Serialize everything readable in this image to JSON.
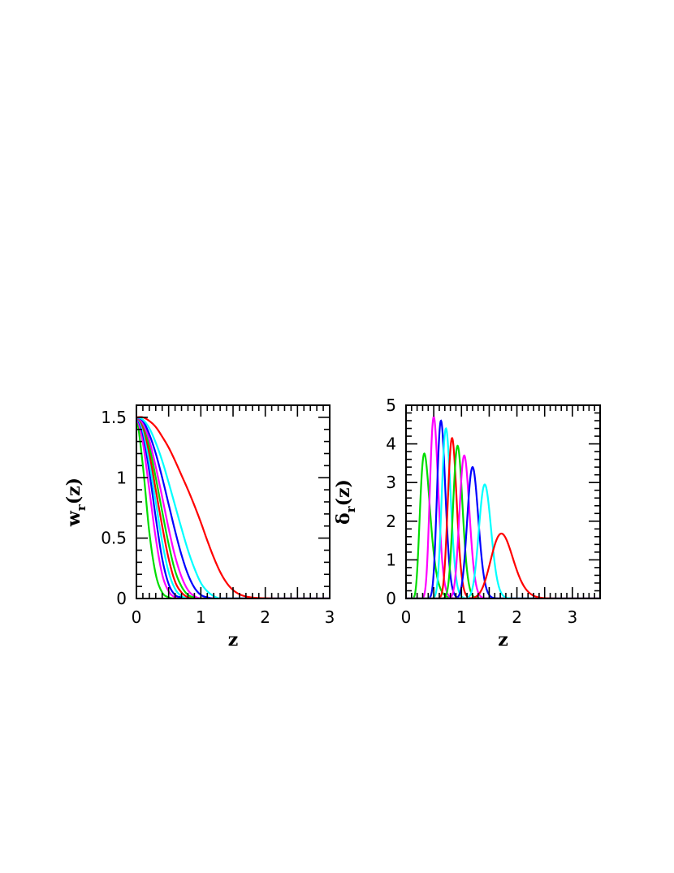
{
  "chart_data": [
    {
      "type": "line",
      "xlabel": "z",
      "ylabel": "w",
      "ylabel_sub": "r",
      "ylabel_suffix": "(z)",
      "xlim": [
        0,
        3
      ],
      "ylim": [
        0,
        1.6
      ],
      "xticks": [
        0,
        1,
        2,
        3
      ],
      "xtick_labels": [
        "0",
        "1",
        "2",
        "3"
      ],
      "yticks": [
        0,
        0.5,
        1,
        1.5
      ],
      "ytick_labels": [
        "0",
        "0.5",
        "1",
        "1.5"
      ],
      "grid": false,
      "legend": "none",
      "x": [
        0,
        0.1,
        0.2,
        0.3,
        0.4,
        0.5,
        0.6,
        0.7,
        0.8,
        0.9,
        1.0,
        1.1,
        1.2,
        1.3,
        1.4,
        1.5,
        1.6,
        1.7,
        1.8,
        1.9,
        2.0,
        2.2,
        2.4,
        2.6,
        2.8,
        3.0
      ],
      "series": [
        {
          "color": "#00dd00",
          "values": [
            1.5,
            1.1,
            0.55,
            0.2,
            0.05,
            0.01,
            0.0,
            0,
            0,
            0,
            0,
            0,
            0,
            0,
            0,
            0,
            0,
            0,
            0,
            0,
            0,
            0,
            0,
            0,
            0,
            0
          ]
        },
        {
          "color": "#ff00ff",
          "values": [
            1.5,
            1.29,
            0.9,
            0.5,
            0.2,
            0.06,
            0.01,
            0.0,
            0,
            0,
            0,
            0,
            0,
            0,
            0,
            0,
            0,
            0,
            0,
            0,
            0,
            0,
            0,
            0,
            0,
            0
          ]
        },
        {
          "color": "#0000ff",
          "values": [
            1.5,
            1.36,
            1.05,
            0.67,
            0.33,
            0.12,
            0.03,
            0.01,
            0.0,
            0,
            0,
            0,
            0,
            0,
            0,
            0,
            0,
            0,
            0,
            0,
            0,
            0,
            0,
            0,
            0,
            0
          ]
        },
        {
          "color": "#00ffff",
          "values": [
            1.5,
            1.39,
            1.13,
            0.8,
            0.47,
            0.22,
            0.08,
            0.02,
            0.0,
            0,
            0,
            0,
            0,
            0,
            0,
            0,
            0,
            0,
            0,
            0,
            0,
            0,
            0,
            0,
            0,
            0
          ]
        },
        {
          "color": "#ff0000",
          "values": [
            1.5,
            1.42,
            1.2,
            0.9,
            0.6,
            0.33,
            0.14,
            0.05,
            0.01,
            0.0,
            0,
            0,
            0,
            0,
            0,
            0,
            0,
            0,
            0,
            0,
            0,
            0,
            0,
            0,
            0,
            0
          ]
        },
        {
          "color": "#00dd00",
          "values": [
            1.5,
            1.44,
            1.26,
            1.0,
            0.72,
            0.45,
            0.23,
            0.1,
            0.03,
            0.01,
            0.0,
            0,
            0,
            0,
            0,
            0,
            0,
            0,
            0,
            0,
            0,
            0,
            0,
            0,
            0,
            0
          ]
        },
        {
          "color": "#ff00ff",
          "values": [
            1.5,
            1.45,
            1.31,
            1.09,
            0.84,
            0.58,
            0.35,
            0.18,
            0.07,
            0.02,
            0.0,
            0,
            0,
            0,
            0,
            0,
            0,
            0,
            0,
            0,
            0,
            0,
            0,
            0,
            0,
            0
          ]
        },
        {
          "color": "#0000ff",
          "values": [
            1.5,
            1.47,
            1.36,
            1.2,
            1.0,
            0.78,
            0.56,
            0.36,
            0.2,
            0.09,
            0.03,
            0.01,
            0.0,
            0,
            0,
            0,
            0,
            0,
            0,
            0,
            0,
            0,
            0,
            0,
            0,
            0
          ]
        },
        {
          "color": "#00ffff",
          "values": [
            1.5,
            1.48,
            1.41,
            1.29,
            1.14,
            0.96,
            0.77,
            0.58,
            0.4,
            0.25,
            0.13,
            0.06,
            0.02,
            0.0,
            0,
            0,
            0,
            0,
            0,
            0,
            0,
            0,
            0,
            0,
            0,
            0
          ]
        },
        {
          "color": "#ff0000",
          "values": [
            1.5,
            1.5,
            1.47,
            1.42,
            1.34,
            1.25,
            1.14,
            1.02,
            0.9,
            0.77,
            0.63,
            0.48,
            0.34,
            0.22,
            0.13,
            0.07,
            0.035,
            0.017,
            0.008,
            0.004,
            0.002,
            0.0,
            0,
            0,
            0,
            0
          ]
        }
      ]
    },
    {
      "type": "line",
      "xlabel": "z",
      "ylabel": "δ",
      "ylabel_sub": "r",
      "ylabel_suffix": "(z)",
      "xlim": [
        0,
        3.5
      ],
      "ylim": [
        0,
        5
      ],
      "xticks": [
        0,
        1,
        2,
        3
      ],
      "xtick_labels": [
        "0",
        "1",
        "2",
        "3"
      ],
      "yticks": [
        0,
        1,
        2,
        3,
        4,
        5
      ],
      "ytick_labels": [
        "0",
        "1",
        "2",
        "3",
        "4",
        "5"
      ],
      "grid": false,
      "legend": "none",
      "series": [
        {
          "color": "#00dd00",
          "peak_x": 0.33,
          "peak_y": 3.75,
          "width": 0.09
        },
        {
          "color": "#ff00ff",
          "peak_x": 0.5,
          "peak_y": 4.7,
          "width": 0.075
        },
        {
          "color": "#0000ff",
          "peak_x": 0.63,
          "peak_y": 4.6,
          "width": 0.075
        },
        {
          "color": "#00ffff",
          "peak_x": 0.72,
          "peak_y": 4.4,
          "width": 0.08
        },
        {
          "color": "#ff0000",
          "peak_x": 0.83,
          "peak_y": 4.15,
          "width": 0.08
        },
        {
          "color": "#00dd00",
          "peak_x": 0.93,
          "peak_y": 3.95,
          "width": 0.085
        },
        {
          "color": "#ff00ff",
          "peak_x": 1.05,
          "peak_y": 3.7,
          "width": 0.09
        },
        {
          "color": "#0000ff",
          "peak_x": 1.2,
          "peak_y": 3.4,
          "width": 0.1
        },
        {
          "color": "#00ffff",
          "peak_x": 1.42,
          "peak_y": 2.95,
          "width": 0.11
        },
        {
          "color": "#ff0000",
          "peak_x": 1.72,
          "peak_y": 1.68,
          "width": 0.2
        }
      ]
    }
  ]
}
